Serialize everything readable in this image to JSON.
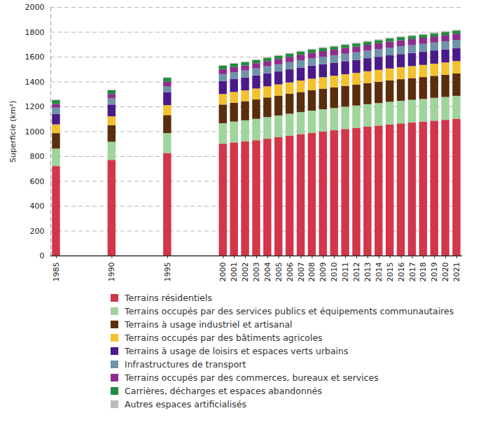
{
  "chart_data": {
    "type": "bar",
    "stacked": true,
    "grid": true,
    "legend": "bottom",
    "y_label": "Superficie (km²)",
    "x": [
      1985,
      1990,
      1995,
      2000,
      2001,
      2002,
      2003,
      2004,
      2005,
      2006,
      2007,
      2008,
      2009,
      2010,
      2011,
      2012,
      2013,
      2014,
      2015,
      2016,
      2017,
      2018,
      2019,
      2020,
      2021
    ],
    "xlim": [
      1984.5,
      2021.5
    ],
    "xticks": [
      1985,
      1990,
      1995,
      2000,
      2001,
      2002,
      2003,
      2004,
      2005,
      2006,
      2007,
      2008,
      2009,
      2010,
      2011,
      2012,
      2013,
      2014,
      2015,
      2016,
      2017,
      2018,
      2019,
      2020,
      2021
    ],
    "ylim": [
      0,
      2000
    ],
    "yticks": [
      0,
      200,
      400,
      600,
      800,
      1000,
      1200,
      1400,
      1600,
      1800,
      2000
    ],
    "series": [
      {
        "name": "Terrains résidentiels",
        "color": "#d2364a",
        "values": [
          720,
          770,
          825,
          900,
          910,
          918,
          928,
          940,
          952,
          965,
          977,
          988,
          998,
          1008,
          1018,
          1027,
          1037,
          1046,
          1055,
          1063,
          1070,
          1077,
          1085,
          1092,
          1100
        ]
      },
      {
        "name": "Terrains occupés par des services publics et équipements communautaires",
        "color": "#9fd49b",
        "values": [
          140,
          145,
          160,
          165,
          168,
          170,
          172,
          174,
          175,
          176,
          177,
          178,
          179,
          179,
          180,
          180,
          181,
          181,
          182,
          182,
          183,
          183,
          184,
          184,
          185
        ]
      },
      {
        "name": "Terrains à usage industriel et artisanal",
        "color": "#5a2e0c",
        "values": [
          125,
          135,
          145,
          150,
          152,
          154,
          156,
          158,
          160,
          161,
          162,
          164,
          165,
          166,
          167,
          168,
          170,
          171,
          172,
          174,
          175,
          176,
          177,
          179,
          180
        ]
      },
      {
        "name": "Terrains occupés par des bâtiments agricoles",
        "color": "#f4c02e",
        "values": [
          70,
          70,
          80,
          85,
          86,
          87,
          88,
          89,
          90,
          91,
          92,
          93,
          93,
          94,
          94,
          95,
          95,
          96,
          96,
          97,
          97,
          98,
          98,
          99,
          100
        ]
      },
      {
        "name": "Terrains à usage de loisirs et espaces verts urbains",
        "color": "#4a1a8a",
        "values": [
          85,
          95,
          105,
          105,
          104,
          104,
          105,
          105,
          104,
          105,
          105,
          106,
          105,
          105,
          105,
          104,
          105,
          105,
          106,
          105,
          105,
          105,
          106,
          105,
          105
        ]
      },
      {
        "name": "Infrastructures de transport",
        "color": "#6f93a8",
        "values": [
          50,
          50,
          45,
          55,
          56,
          56,
          57,
          57,
          58,
          58,
          59,
          59,
          60,
          60,
          60,
          61,
          61,
          62,
          62,
          63,
          63,
          64,
          64,
          65,
          65
        ]
      },
      {
        "name": "Terrains occupés par des commerces, bureaux et services",
        "color": "#8e2c8e",
        "values": [
          30,
          35,
          40,
          40,
          41,
          41,
          42,
          42,
          43,
          43,
          44,
          44,
          45,
          45,
          46,
          46,
          47,
          47,
          48,
          48,
          49,
          49,
          49,
          50,
          50
        ]
      },
      {
        "name": "Carrières, décharges et espaces abandonnés",
        "color": "#1f8c3b",
        "values": [
          30,
          30,
          30,
          27,
          27,
          27,
          26,
          26,
          26,
          26,
          26,
          26,
          26,
          25,
          25,
          25,
          25,
          25,
          25,
          25,
          25,
          25,
          25,
          25,
          25
        ]
      },
      {
        "name": "Autres espaces artificialisés",
        "color": "#bdbdbd",
        "values": [
          5,
          5,
          5,
          5,
          5,
          5,
          5,
          6,
          6,
          6,
          6,
          6,
          6,
          6,
          7,
          7,
          7,
          7,
          7,
          7,
          7,
          7,
          8,
          8,
          8
        ]
      }
    ]
  }
}
